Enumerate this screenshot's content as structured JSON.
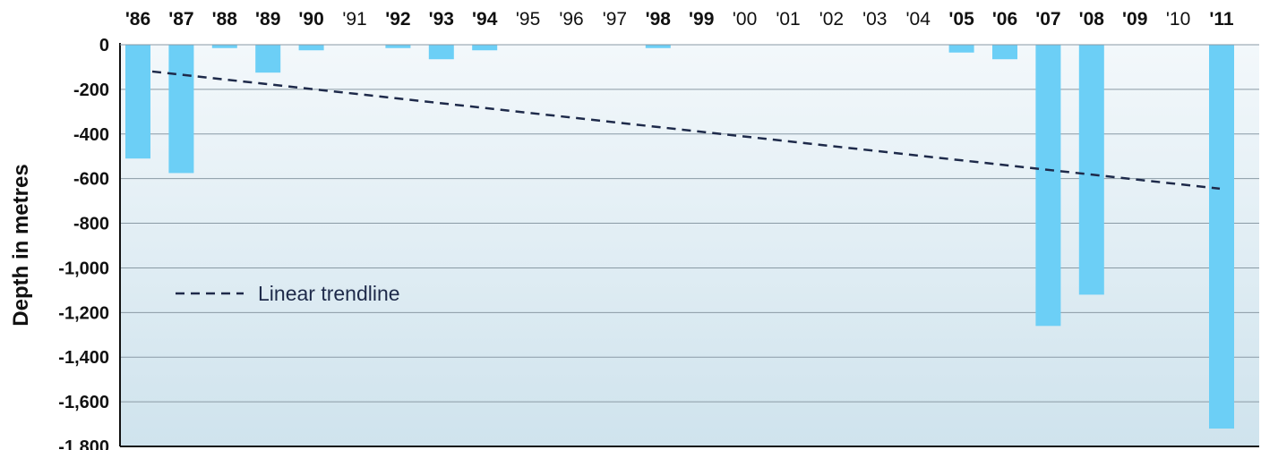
{
  "chart_data": {
    "type": "bar",
    "categories": [
      "'86",
      "'87",
      "'88",
      "'89",
      "'90",
      "'91",
      "'92",
      "'93",
      "'94",
      "'95",
      "'96",
      "'97",
      "'98",
      "'99",
      "'00",
      "'01",
      "'02",
      "'03",
      "'04",
      "'05",
      "'06",
      "'07",
      "'08",
      "'09",
      "'10",
      "'11"
    ],
    "bold_categories": [
      "'86",
      "'87",
      "'88",
      "'89",
      "'90",
      "'92",
      "'93",
      "'94",
      "'98",
      "'99",
      "'05",
      "'06",
      "'07",
      "'08",
      "'09",
      "'11"
    ],
    "values": [
      -510,
      -575,
      -15,
      -125,
      -25,
      0,
      -15,
      -65,
      -25,
      0,
      0,
      0,
      -15,
      0,
      0,
      0,
      0,
      0,
      0,
      -35,
      -65,
      -1260,
      -1120,
      0,
      0,
      -1720
    ],
    "ylabel": "Depth in metres",
    "yticks": [
      0,
      -200,
      -400,
      -600,
      -800,
      -1000,
      -1200,
      -1400,
      -1600,
      -1800
    ],
    "ytick_labels": [
      "0",
      "-200",
      "-400",
      "-600",
      "-800",
      "-1,000",
      "-1,200",
      "-1,400",
      "-1,600",
      "-1,800"
    ],
    "ylim": [
      -1800,
      0
    ],
    "grid": true,
    "trendline": {
      "label": "Linear trendline",
      "start": {
        "x": "'86",
        "y": -120
      },
      "end": {
        "x": "'11",
        "y": -645
      }
    },
    "legend_position": "left-middle",
    "colors": {
      "bar": "#6ccff6",
      "trendline": "#1e2a4a",
      "background_top": "#f3f8fb",
      "background_bottom": "#cfe3ed",
      "grid": "#8a9aa5",
      "axis": "#111111"
    }
  }
}
